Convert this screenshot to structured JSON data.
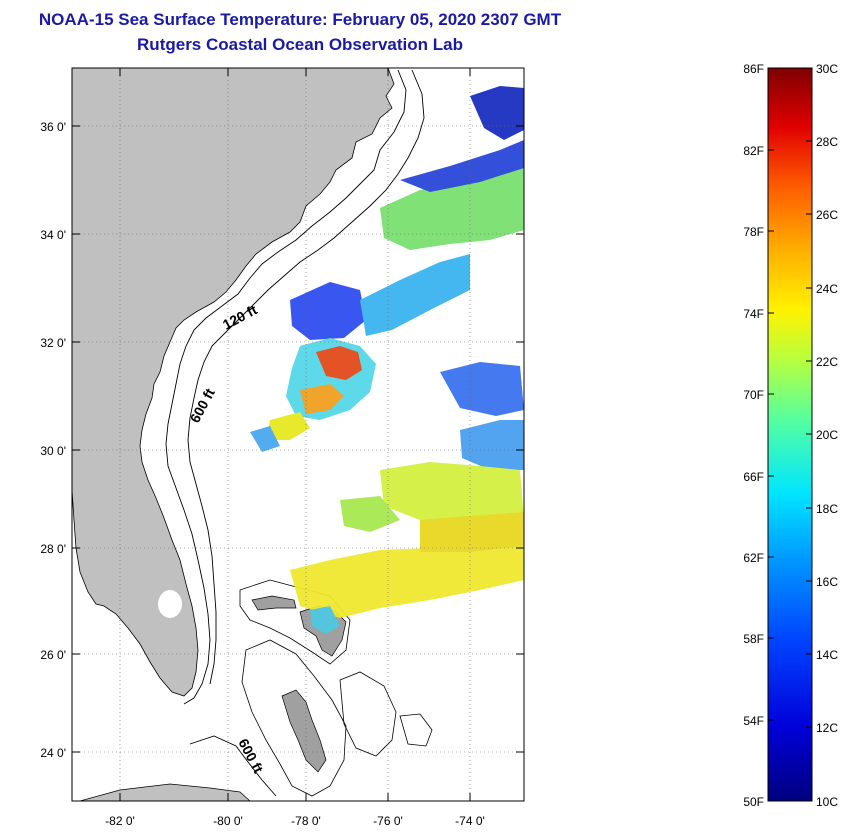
{
  "title_line1": "NOAA-15 Sea Surface Temperature:  February 05, 2020 2307 GMT",
  "title_line2": "Rutgers Coastal Ocean Observation Lab",
  "map": {
    "lat_ticks": [
      "36 0'",
      "34 0'",
      "32 0'",
      "30 0'",
      "28 0'",
      "26 0'",
      "24 0'"
    ],
    "lon_ticks": [
      "-82 0'",
      "-80 0'",
      "-78 0'",
      "-76 0'",
      "-74 0'"
    ],
    "contour_labels": [
      "120 ft",
      "600 ft",
      "600 ft"
    ]
  },
  "colorbar": {
    "fahrenheit": [
      "86F",
      "82F",
      "78F",
      "74F",
      "70F",
      "66F",
      "62F",
      "58F",
      "54F",
      "50F"
    ],
    "celsius": [
      "30C",
      "28C",
      "26C",
      "24C",
      "22C",
      "20C",
      "18C",
      "16C",
      "14C",
      "12C",
      "10C"
    ]
  },
  "colors": {
    "land": "#c0c0c0",
    "title": "#1a1aa6",
    "warm": "#d42a1a",
    "cold": "#1a36c8"
  }
}
